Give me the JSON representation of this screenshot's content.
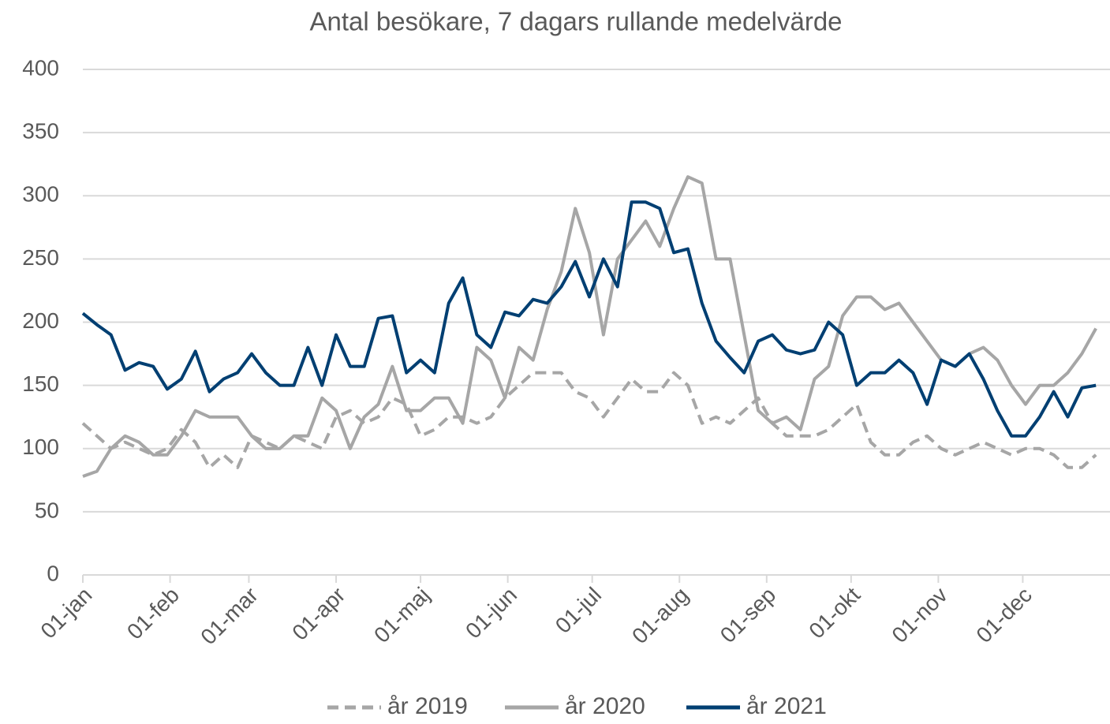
{
  "chart_data": {
    "type": "line",
    "title": "Antal besökare, 7 dagars rullande medelvärde",
    "x": [
      0,
      5,
      10,
      15,
      20,
      25,
      30,
      35,
      40,
      45,
      50,
      55,
      60,
      65,
      70,
      75,
      80,
      85,
      90,
      95,
      100,
      105,
      110,
      115,
      120,
      125,
      130,
      135,
      140,
      145,
      150,
      155,
      160,
      165,
      170,
      175,
      180,
      185,
      190,
      195,
      200,
      205,
      210,
      215,
      220,
      225,
      230,
      235,
      240,
      245,
      250,
      255,
      260,
      265,
      270,
      275,
      280,
      285,
      290,
      295,
      300,
      305,
      310,
      315,
      320,
      325,
      330,
      335,
      340,
      345,
      350,
      355,
      360
    ],
    "xlim": [
      0,
      365
    ],
    "xticks": [
      {
        "value": 0,
        "label": "01-jan"
      },
      {
        "value": 31,
        "label": "01-feb"
      },
      {
        "value": 59,
        "label": "01-mar"
      },
      {
        "value": 90,
        "label": "01-apr"
      },
      {
        "value": 120,
        "label": "01-maj"
      },
      {
        "value": 151,
        "label": "01-jun"
      },
      {
        "value": 181,
        "label": "01-jul"
      },
      {
        "value": 212,
        "label": "01-aug"
      },
      {
        "value": 243,
        "label": "01-sep"
      },
      {
        "value": 273,
        "label": "01-okt"
      },
      {
        "value": 304,
        "label": "01-nov"
      },
      {
        "value": 334,
        "label": "01-dec"
      }
    ],
    "ylim": [
      0,
      400
    ],
    "yticks": [
      0,
      50,
      100,
      150,
      200,
      250,
      300,
      350,
      400
    ],
    "grid": true,
    "legend": "bottom",
    "series": [
      {
        "name": "år 2019",
        "color": "#a6a6a6",
        "style": "dashed",
        "values": [
          120,
          110,
          100,
          105,
          100,
          95,
          100,
          115,
          105,
          85,
          95,
          85,
          110,
          105,
          100,
          110,
          105,
          100,
          125,
          130,
          120,
          125,
          140,
          135,
          110,
          115,
          125,
          125,
          120,
          125,
          140,
          150,
          160,
          160,
          160,
          145,
          140,
          125,
          140,
          155,
          145,
          145,
          160,
          150,
          120,
          125,
          120,
          130,
          140,
          120,
          110,
          110,
          110,
          115,
          125,
          135,
          105,
          95,
          95,
          105,
          110,
          100,
          95,
          100,
          105,
          100,
          95,
          100,
          100,
          95,
          85,
          85,
          95
        ]
      },
      {
        "name": "år 2020",
        "color": "#a6a6a6",
        "style": "solid",
        "values": [
          78,
          82,
          100,
          110,
          105,
          95,
          95,
          110,
          130,
          125,
          125,
          125,
          110,
          100,
          100,
          110,
          110,
          140,
          130,
          100,
          125,
          135,
          165,
          130,
          130,
          140,
          140,
          120,
          180,
          170,
          140,
          180,
          170,
          210,
          240,
          290,
          255,
          190,
          250,
          265,
          280,
          260,
          290,
          315,
          310,
          250,
          250,
          190,
          130,
          120,
          125,
          115,
          155,
          165,
          205,
          220,
          220,
          210,
          215,
          200,
          185,
          170,
          165,
          175,
          180,
          170,
          150,
          135,
          150,
          150,
          160,
          175,
          195
        ]
      },
      {
        "name": "år 2021",
        "color": "#003f72",
        "style": "solid",
        "values": [
          207,
          198,
          190,
          162,
          168,
          165,
          147,
          155,
          177,
          145,
          155,
          160,
          175,
          160,
          150,
          150,
          180,
          150,
          190,
          165,
          165,
          203,
          205,
          160,
          170,
          160,
          215,
          235,
          190,
          180,
          208,
          205,
          218,
          215,
          228,
          248,
          220,
          250,
          228,
          295,
          295,
          290,
          255,
          258,
          215,
          185,
          172,
          160,
          185,
          190,
          178,
          175,
          178,
          200,
          190,
          150,
          160,
          160,
          170,
          160,
          135,
          170,
          165,
          175,
          155,
          130,
          110,
          110,
          125,
          145,
          125,
          148,
          150
        ]
      }
    ]
  }
}
